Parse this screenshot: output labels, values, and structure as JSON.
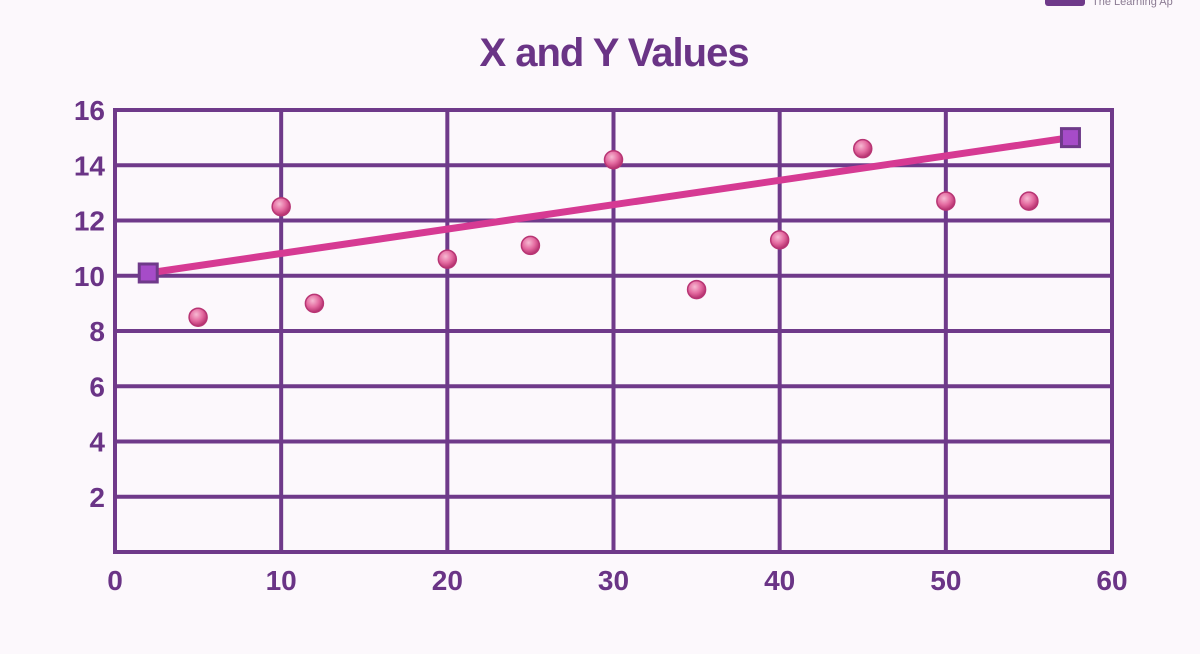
{
  "brand": {
    "text": "The Learning Ap",
    "logo_icon": "brand-logo-icon"
  },
  "colors": {
    "background": "#fcf8fc",
    "axis_grid": "#6f3a8a",
    "text": "#6a3486",
    "trend_line": "#d63a93",
    "point_fill": "#e46aa0",
    "endpoint_fill": "#a64cc8"
  },
  "chart_data": {
    "type": "scatter",
    "title": "X and Y Values",
    "xlabel": "",
    "ylabel": "",
    "xlim": [
      0,
      60
    ],
    "ylim": [
      0,
      16
    ],
    "x_ticks": [
      0,
      10,
      20,
      30,
      40,
      50,
      60
    ],
    "y_ticks": [
      2,
      4,
      6,
      8,
      10,
      12,
      14,
      16
    ],
    "grid": true,
    "points": [
      {
        "x": 5,
        "y": 8.5
      },
      {
        "x": 10,
        "y": 12.5
      },
      {
        "x": 12,
        "y": 9
      },
      {
        "x": 20,
        "y": 10.6
      },
      {
        "x": 25,
        "y": 11.1
      },
      {
        "x": 30,
        "y": 14.2
      },
      {
        "x": 35,
        "y": 9.5
      },
      {
        "x": 40,
        "y": 11.3
      },
      {
        "x": 45,
        "y": 14.6
      },
      {
        "x": 50,
        "y": 12.7
      },
      {
        "x": 55,
        "y": 12.7
      }
    ],
    "trend_line": {
      "start": {
        "x": 2,
        "y": 10.1
      },
      "end": {
        "x": 57.5,
        "y": 15
      }
    }
  }
}
